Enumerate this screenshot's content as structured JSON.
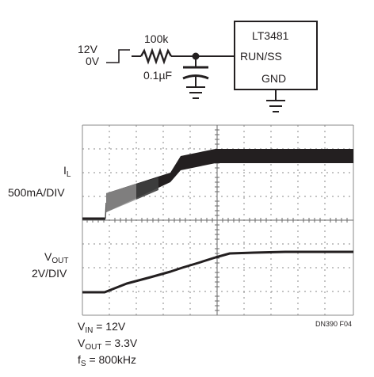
{
  "schematic": {
    "input_voltage_high": "12V",
    "input_voltage_low": "0V",
    "resistor_value": "100k",
    "capacitor_value": "0.1µF",
    "ic_name": "LT3481",
    "pin_run_ss": "RUN/SS",
    "pin_gnd": "GND"
  },
  "scope": {
    "trace_il": {
      "label_main": "I",
      "label_sub": "L",
      "scale": "500mA/DIV"
    },
    "trace_vout": {
      "label_main": "V",
      "label_sub": "OUT",
      "scale": "2V/DIV"
    },
    "figure_id": "DN390 F04"
  },
  "conditions": [
    {
      "symbol": "V",
      "sub": "IN",
      "rest": " = 12V"
    },
    {
      "symbol": "V",
      "sub": "OUT",
      "rest": " = 3.3V"
    },
    {
      "symbol": "f",
      "sub": "S",
      "rest": " = 800kHz"
    }
  ]
}
